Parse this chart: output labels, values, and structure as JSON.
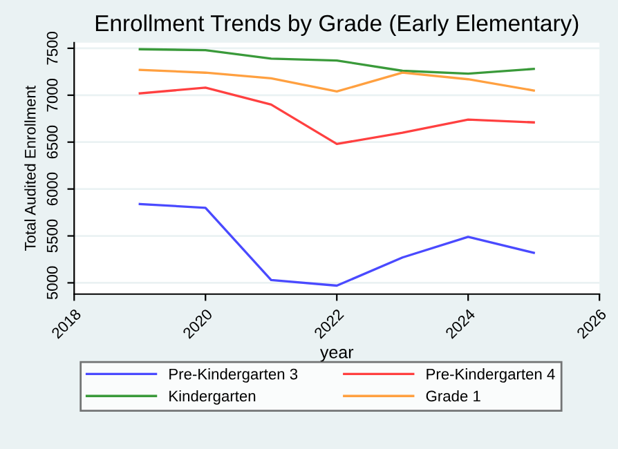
{
  "chart_data": {
    "type": "line",
    "title": "Enrollment Trends by Grade (Early Elementary)",
    "xlabel": "year",
    "ylabel": "Total Audited Enrollment",
    "x": [
      2019,
      2020,
      2021,
      2022,
      2023,
      2024,
      2025
    ],
    "series": [
      {
        "name": "Pre-Kindergarten 3",
        "color": "#4a4aff",
        "values": [
          5840,
          5800,
          5030,
          4970,
          5270,
          5490,
          5320
        ]
      },
      {
        "name": "Pre-Kindergarten 4",
        "color": "#ff4040",
        "values": [
          7020,
          7080,
          6900,
          6480,
          6600,
          6740,
          6710
        ]
      },
      {
        "name": "Kindergarten",
        "color": "#3a9a3a",
        "values": [
          7490,
          7480,
          7390,
          7370,
          7260,
          7230,
          7280
        ]
      },
      {
        "name": "Grade 1",
        "color": "#ffa040",
        "values": [
          7270,
          7240,
          7180,
          7040,
          7240,
          7170,
          7050
        ]
      }
    ],
    "xlim": [
      2018,
      2026
    ],
    "xticks": [
      2018,
      2020,
      2022,
      2024,
      2026
    ],
    "ylim": [
      4880,
      7560
    ],
    "yticks": [
      5000,
      5500,
      6000,
      6500,
      7000,
      7500
    ],
    "grid": "y",
    "legend": "bottom"
  }
}
